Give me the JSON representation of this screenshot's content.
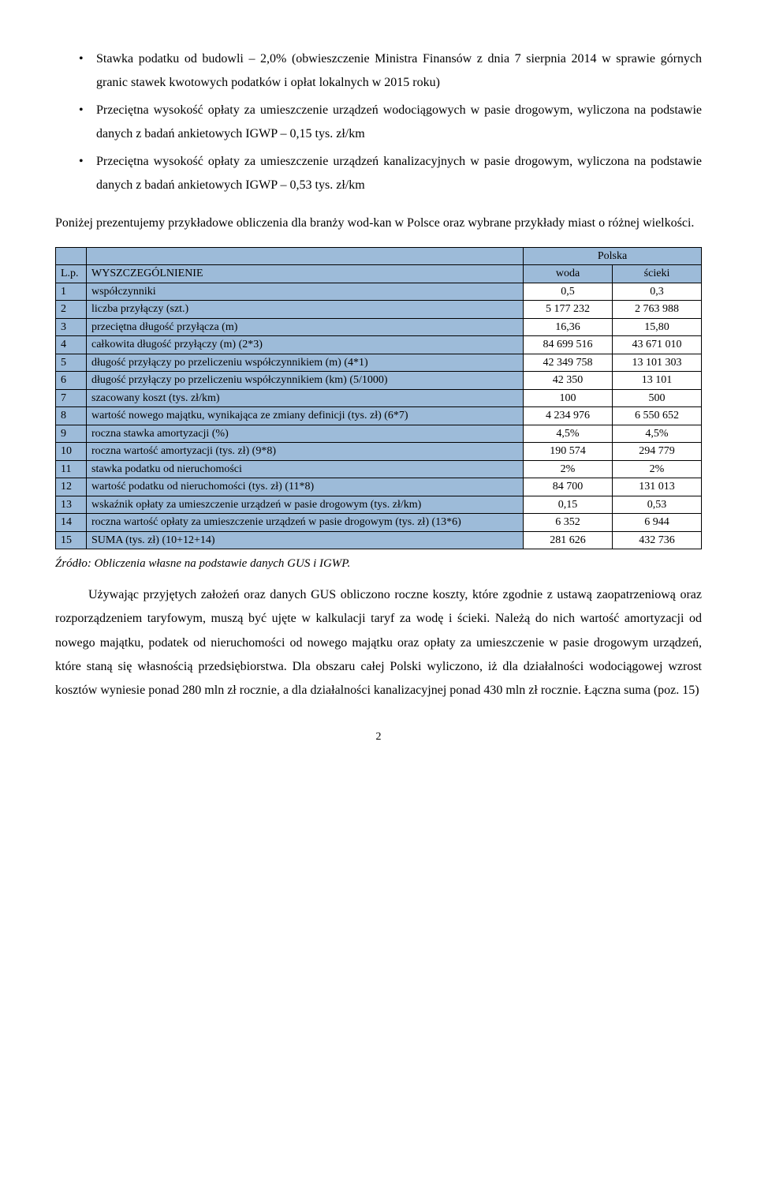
{
  "bullets": [
    "Stawka podatku od budowli – 2,0% (obwieszczenie Ministra Finansów z dnia 7 sierpnia 2014 w sprawie górnych granic stawek kwotowych podatków i opłat lokalnych w 2015 roku)",
    "Przeciętna wysokość opłaty za umieszczenie urządzeń wodociągowych w pasie drogowym, wyliczona na podstawie danych z badań ankietowych IGWP – 0,15 tys. zł/km",
    "Przeciętna wysokość opłaty za umieszczenie urządzeń kanalizacyjnych w pasie drogowym, wyliczona na podstawie danych z badań ankietowych IGWP – 0,53 tys. zł/km"
  ],
  "intro_para": "Poniżej prezentujemy przykładowe obliczenia dla branży wod-kan w Polsce oraz wybrane przykłady miast o różnej wielkości.",
  "table": {
    "region_label": "Polska",
    "lp_header": "L.p.",
    "col_header": "WYSZCZEGÓLNIENIE",
    "woda_header": "woda",
    "scieki_header": "ścieki",
    "rows": [
      {
        "lp": "1",
        "desc": "współczynniki",
        "woda": "0,5",
        "scieki": "0,3"
      },
      {
        "lp": "2",
        "desc": "liczba przyłączy (szt.)",
        "woda": "5 177 232",
        "scieki": "2 763 988"
      },
      {
        "lp": "3",
        "desc": "przeciętna długość przyłącza (m)",
        "woda": "16,36",
        "scieki": "15,80"
      },
      {
        "lp": "4",
        "desc": "całkowita długość przyłączy (m) (2*3)",
        "woda": "84 699 516",
        "scieki": "43 671 010"
      },
      {
        "lp": "5",
        "desc": "długość przyłączy po przeliczeniu współczynnikiem (m) (4*1)",
        "woda": "42 349 758",
        "scieki": "13 101 303"
      },
      {
        "lp": "6",
        "desc": "długość przyłączy po przeliczeniu współczynnikiem (km) (5/1000)",
        "woda": "42 350",
        "scieki": "13 101"
      },
      {
        "lp": "7",
        "desc": "szacowany koszt (tys. zł/km)",
        "woda": "100",
        "scieki": "500"
      },
      {
        "lp": "8",
        "desc": "wartość nowego majątku, wynikająca ze zmiany definicji (tys. zł) (6*7)",
        "woda": "4 234 976",
        "scieki": "6 550 652"
      },
      {
        "lp": "9",
        "desc": "roczna stawka amortyzacji (%)",
        "woda": "4,5%",
        "scieki": "4,5%"
      },
      {
        "lp": "10",
        "desc": "roczna wartość amortyzacji (tys. zł) (9*8)",
        "woda": "190 574",
        "scieki": "294 779"
      },
      {
        "lp": "11",
        "desc": "stawka podatku od nieruchomości",
        "woda": "2%",
        "scieki": "2%"
      },
      {
        "lp": "12",
        "desc": "wartość podatku od nieruchomości (tys. zł) (11*8)",
        "woda": "84 700",
        "scieki": "131 013"
      },
      {
        "lp": "13",
        "desc": "wskaźnik opłaty za umieszczenie urządzeń w pasie drogowym (tys. zł/km)",
        "woda": "0,15",
        "scieki": "0,53"
      },
      {
        "lp": "14",
        "desc": "roczna wartość opłaty za umieszczenie urządzeń w pasie drogowym (tys. zł) (13*6)",
        "woda": "6 352",
        "scieki": "6 944"
      },
      {
        "lp": "15",
        "desc": "SUMA (tys. zł) (10+12+14)",
        "woda": "281 626",
        "scieki": "432 736"
      }
    ]
  },
  "source_note": "Źródło: Obliczenia własne na podstawie danych GUS i IGWP.",
  "closing_para": "Używając przyjętych założeń oraz danych GUS obliczono roczne koszty, które zgodnie z ustawą zaopatrzeniową oraz rozporządzeniem taryfowym, muszą być ujęte w kalkulacji taryf za wodę i ścieki. Należą do nich wartość amortyzacji od nowego majątku, podatek od nieruchomości od nowego majątku oraz opłaty za umieszczenie w pasie drogowym urządzeń, które staną się własnością przedsiębiorstwa. Dla obszaru całej Polski wyliczono, iż dla działalności wodociągowej wzrost kosztów wyniesie ponad 280 mln zł rocznie, a dla działalności kanalizacyjnej ponad 430 mln zł rocznie. Łączna suma (poz. 15)",
  "page_number": "2"
}
